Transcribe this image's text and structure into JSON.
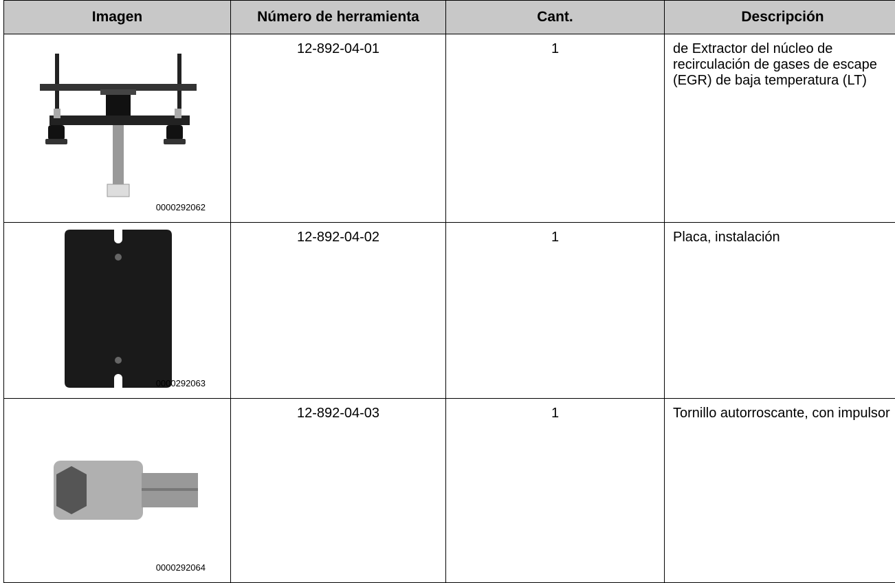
{
  "table": {
    "header": [
      "Imagen",
      "Número de herramienta",
      "Cant.",
      "Descripción"
    ],
    "rows": [
      [
        "0000292062",
        "12-892-04-01",
        "1",
        "de Extractor del núcleo de recirculación de gases de escape (EGR) de baja temperatura (LT)"
      ],
      [
        "0000292063",
        "12-892-04-02",
        "1",
        "Placa, instalación"
      ],
      [
        "0000292064",
        "12-892-04-03",
        "1",
        "Tornillo autorroscante, con impulsor"
      ]
    ]
  }
}
